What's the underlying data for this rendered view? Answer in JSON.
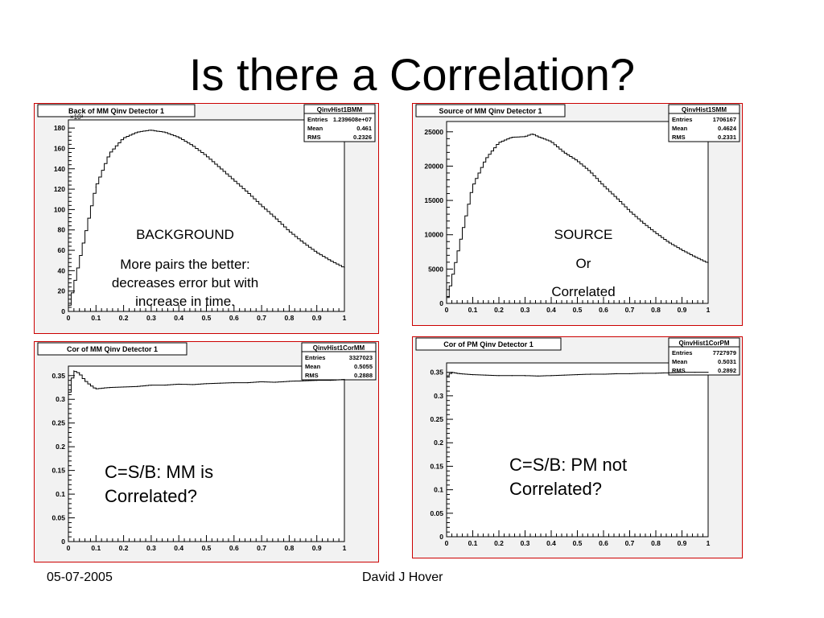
{
  "slide": {
    "title": "Is there a Correlation?",
    "footer_date": "05-07-2005",
    "footer_author": "David J Hover"
  },
  "annotations": {
    "background_heading": "BACKGROUND",
    "background_note": "More pairs the better: decreases error but with increase in time.",
    "source_line1": "SOURCE",
    "source_line2": "Or",
    "source_line3": "Correlated",
    "mm_note": "C=S/B:  MM is Correlated?",
    "pm_note": "C=S/B: PM not Correlated?"
  },
  "chart_data": [
    {
      "type": "line",
      "title": "Back of MM  Qinv Detector 1",
      "stats": {
        "name": "QinvHist1BMM",
        "rows": [
          [
            "Entries",
            "1.239608e+07"
          ],
          [
            "Mean",
            "0.461"
          ],
          [
            "RMS",
            "0.2326"
          ]
        ]
      },
      "exponent_label": "×10³",
      "xlim": [
        0,
        1
      ],
      "ylim": [
        0,
        188
      ],
      "xticks": [
        "0",
        "0.1",
        "0.2",
        "0.3",
        "0.4",
        "0.5",
        "0.6",
        "0.7",
        "0.8",
        "0.9",
        "1"
      ],
      "yticks": [
        0,
        20,
        40,
        60,
        80,
        100,
        120,
        140,
        160,
        180
      ],
      "ytick_labels": [
        "0",
        "20",
        "40",
        "60",
        "80",
        "100",
        "120",
        "140",
        "160",
        "180"
      ],
      "x": [
        0,
        0.1,
        0.15,
        0.2,
        0.25,
        0.3,
        0.32,
        0.35,
        0.4,
        0.45,
        0.5,
        0.55,
        0.6,
        0.65,
        0.7,
        0.75,
        0.8,
        0.85,
        0.9,
        0.95,
        1.0
      ],
      "y": [
        0,
        122,
        155,
        170,
        176,
        178,
        177,
        176,
        171,
        163,
        153,
        141,
        129,
        117,
        104,
        92,
        79,
        68,
        58,
        50,
        43
      ]
    },
    {
      "type": "line",
      "title": "Source of MM  Qinv Detector 1",
      "stats": {
        "name": "QinvHist1SMM",
        "rows": [
          [
            "Entries",
            "1706167"
          ],
          [
            "Mean",
            "0.4624"
          ],
          [
            "RMS",
            "0.2331"
          ]
        ]
      },
      "xlim": [
        0,
        1
      ],
      "ylim": [
        0,
        26500
      ],
      "xticks": [
        "0",
        "0.1",
        "0.2",
        "0.3",
        "0.4",
        "0.5",
        "0.6",
        "0.7",
        "0.8",
        "0.9",
        "1"
      ],
      "yticks": [
        0,
        5000,
        10000,
        15000,
        20000,
        25000
      ],
      "ytick_labels": [
        "0",
        "5000",
        "10000",
        "15000",
        "20000",
        "25000"
      ],
      "x": [
        0,
        0.1,
        0.15,
        0.2,
        0.25,
        0.3,
        0.33,
        0.35,
        0.4,
        0.45,
        0.5,
        0.55,
        0.6,
        0.65,
        0.7,
        0.75,
        0.8,
        0.85,
        0.9,
        0.95,
        1.0
      ],
      "y": [
        0,
        17000,
        21000,
        23400,
        24200,
        24300,
        24700,
        24300,
        23600,
        22000,
        20800,
        19200,
        17200,
        15400,
        13500,
        11800,
        10300,
        8900,
        7800,
        6800,
        5900
      ]
    },
    {
      "type": "line",
      "title": "Cor of MM  Qinv Detector 1",
      "stats": {
        "name": "QinvHist1CorMM",
        "rows": [
          [
            "Entries",
            "3327023"
          ],
          [
            "Mean",
            "0.5055"
          ],
          [
            "RMS",
            "0.2888"
          ]
        ]
      },
      "xlim": [
        0,
        1
      ],
      "ylim": [
        0,
        0.37
      ],
      "xticks": [
        "0",
        "0.1",
        "0.2",
        "0.3",
        "0.4",
        "0.5",
        "0.6",
        "0.7",
        "0.8",
        "0.9",
        "1"
      ],
      "yticks": [
        0,
        0.05,
        0.1,
        0.15,
        0.2,
        0.25,
        0.3,
        0.35
      ],
      "ytick_labels": [
        "0",
        "0.05",
        "0.1",
        "0.15",
        "0.2",
        "0.25",
        "0.3",
        "0.35"
      ],
      "x": [
        0,
        0.02,
        0.04,
        0.06,
        0.08,
        0.1,
        0.15,
        0.2,
        0.25,
        0.3,
        0.35,
        0.4,
        0.45,
        0.5,
        0.55,
        0.6,
        0.65,
        0.7,
        0.75,
        0.8,
        0.85,
        0.9,
        0.95,
        1.0
      ],
      "y": [
        0.3,
        0.36,
        0.355,
        0.34,
        0.33,
        0.322,
        0.325,
        0.326,
        0.327,
        0.33,
        0.33,
        0.332,
        0.331,
        0.333,
        0.334,
        0.335,
        0.335,
        0.337,
        0.336,
        0.338,
        0.339,
        0.34,
        0.34,
        0.342
      ]
    },
    {
      "type": "line",
      "title": "Cor of PM  Qinv Detector 1",
      "stats": {
        "name": "QinvHist1CorPM",
        "rows": [
          [
            "Entries",
            "7727979"
          ],
          [
            "Mean",
            "0.5031"
          ],
          [
            "RMS",
            "0.2892"
          ]
        ]
      },
      "xlim": [
        0,
        1
      ],
      "ylim": [
        0,
        0.37
      ],
      "xticks": [
        "0",
        "0.1",
        "0.2",
        "0.3",
        "0.4",
        "0.5",
        "0.6",
        "0.7",
        "0.8",
        "0.9",
        "1"
      ],
      "yticks": [
        0,
        0.05,
        0.1,
        0.15,
        0.2,
        0.25,
        0.3,
        0.35
      ],
      "ytick_labels": [
        "0",
        "0.05",
        "0.1",
        "0.15",
        "0.2",
        "0.25",
        "0.3",
        "0.35"
      ],
      "x": [
        0,
        0.02,
        0.05,
        0.1,
        0.15,
        0.2,
        0.25,
        0.3,
        0.35,
        0.4,
        0.45,
        0.5,
        0.55,
        0.6,
        0.65,
        0.7,
        0.75,
        0.8,
        0.85,
        0.9,
        0.95,
        1.0
      ],
      "y": [
        0.34,
        0.35,
        0.347,
        0.345,
        0.344,
        0.343,
        0.343,
        0.343,
        0.342,
        0.343,
        0.344,
        0.345,
        0.346,
        0.346,
        0.347,
        0.347,
        0.348,
        0.348,
        0.349,
        0.35,
        0.35,
        0.35
      ]
    }
  ]
}
